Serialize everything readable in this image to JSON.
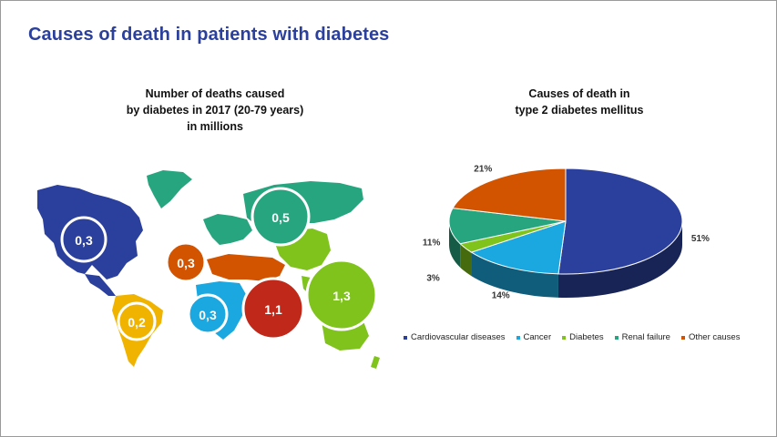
{
  "title": "Causes of death in patients with diabetes",
  "map_title": [
    "Number of deaths caused",
    "by diabetes in 2017 (20-79 years)",
    "in millions"
  ],
  "pie_title": [
    "Causes of death in",
    "type 2 diabetes mellitus"
  ],
  "chart_data": [
    {
      "type": "bubble-map",
      "title": "Number of deaths caused by diabetes in 2017 (20-79 years) in millions",
      "bubbles": [
        {
          "label": "0,3",
          "value": 0.3,
          "color": "#2b3f9c"
        },
        {
          "label": "0,2",
          "value": 0.2,
          "color": "#f0b400"
        },
        {
          "label": "0,3",
          "value": 0.3,
          "color": "#d35400"
        },
        {
          "label": "0,3",
          "value": 0.3,
          "color": "#1ba7e0"
        },
        {
          "label": "0,5",
          "value": 0.5,
          "color": "#27a57f"
        },
        {
          "label": "1,1",
          "value": 1.1,
          "color": "#c0281a"
        },
        {
          "label": "1,3",
          "value": 1.3,
          "color": "#7fc31c"
        }
      ]
    },
    {
      "type": "pie",
      "title": "Causes of death in type 2 diabetes mellitus",
      "slices": [
        {
          "name": "Cardiovascular diseases",
          "value": 51,
          "label": "51%",
          "color": "#2b3f9c"
        },
        {
          "name": "Cancer",
          "value": 14,
          "label": "14%",
          "color": "#1ba7e0"
        },
        {
          "name": "Diabetes",
          "value": 3,
          "label": "3%",
          "color": "#7fc31c"
        },
        {
          "name": "Renal failure",
          "value": 11,
          "label": "11%",
          "color": "#27a57f"
        },
        {
          "name": "Other causes",
          "value": 21,
          "label": "21%",
          "color": "#d35400"
        }
      ]
    }
  ]
}
